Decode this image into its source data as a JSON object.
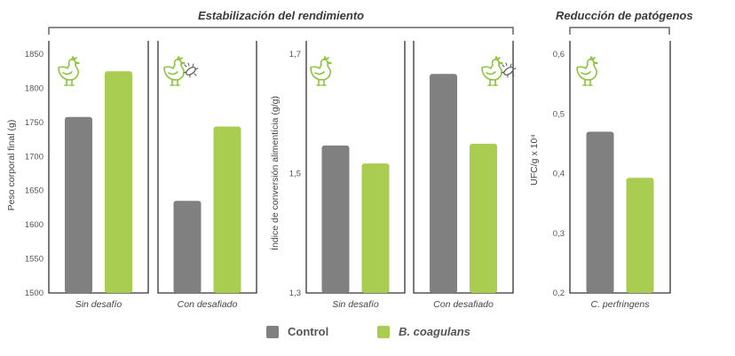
{
  "headers": {
    "left": "Estabilización del rendimiento",
    "right": "Reducción de patógenos"
  },
  "colors": {
    "control": "#808080",
    "coagulans": "#a9cd51",
    "axis": "#333333",
    "tick_text": "#555555",
    "icon": "#8cc43f"
  },
  "legend": [
    {
      "key": "control",
      "label": "Control",
      "italic": false
    },
    {
      "key": "coagulans",
      "label": "B. coagulans",
      "italic": true
    }
  ],
  "chart_data": [
    {
      "type": "bar",
      "ylabel": "Peso corporal final (g)",
      "ylim": [
        1500,
        1850
      ],
      "yticks": [
        "1500",
        "1550",
        "1600",
        "1650",
        "1700",
        "1750",
        "1800",
        "1850"
      ],
      "categories": [
        "Sin desafío",
        "Con desafiado"
      ],
      "series": [
        {
          "name": "Control",
          "values": [
            1758,
            1635
          ]
        },
        {
          "name": "B. coagulans",
          "values": [
            1825,
            1744
          ]
        }
      ],
      "icons": [
        "chicken-icon",
        "chicken-pathogen-icon"
      ]
    },
    {
      "type": "bar",
      "ylabel": "Índice de conversión alimentícia (g/g)",
      "ylim": [
        1.3,
        1.7
      ],
      "yticks": [
        "1,3",
        "1,5",
        "1,7"
      ],
      "categories": [
        "Sin desafío",
        "Con desafiado"
      ],
      "series": [
        {
          "name": "Control",
          "values": [
            1.547,
            1.667
          ]
        },
        {
          "name": "B. coagulans",
          "values": [
            1.517,
            1.55
          ]
        }
      ],
      "icons": [
        "chicken-icon",
        "chicken-pathogen-icon"
      ]
    },
    {
      "type": "bar",
      "ylabel": "UFC/g x 10⁴",
      "ylim": [
        0.2,
        0.6
      ],
      "yticks": [
        "0,2",
        "0,3",
        "0,4",
        "0,5",
        "0,6"
      ],
      "categories": [
        "C. perfringens"
      ],
      "series": [
        {
          "name": "Control",
          "values": [
            0.47
          ]
        },
        {
          "name": "B. coagulans",
          "values": [
            0.393
          ]
        }
      ],
      "icons": [
        "chicken-icon"
      ]
    }
  ]
}
